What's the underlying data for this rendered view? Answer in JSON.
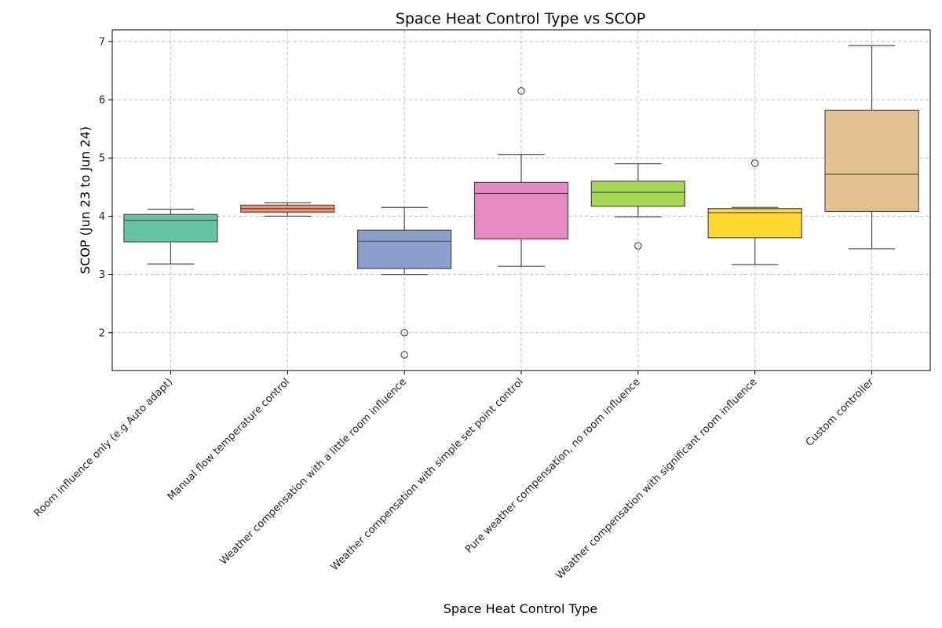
{
  "chart_data": {
    "type": "box",
    "title": "Space Heat Control Type vs SCOP",
    "xlabel": "Space Heat Control Type",
    "ylabel": "SCOP (Jun 23 to Jun 24)",
    "ylim": [
      1.35,
      7.2
    ],
    "yticks": [
      2,
      3,
      4,
      5,
      6,
      7
    ],
    "grid": true,
    "categories": [
      "Room influence only (e.g Auto adapt)",
      "Manual flow temperature control",
      "Weather compensation with a little room influence",
      "Weather compensation with simple set point control",
      "Pure weather compensation, no room influence",
      "Weather compensation with significant room influence",
      "Custom controller"
    ],
    "colors": [
      "#66c2a5",
      "#fc8d62",
      "#8da0cb",
      "#e78ac3",
      "#a6d854",
      "#ffd92f",
      "#e5c494"
    ],
    "boxes": [
      {
        "whisker_low": 3.18,
        "q1": 3.56,
        "median": 3.93,
        "q3": 4.03,
        "whisker_high": 4.12,
        "outliers": []
      },
      {
        "whisker_low": 4.0,
        "q1": 4.07,
        "median": 4.13,
        "q3": 4.19,
        "whisker_high": 4.23,
        "outliers": []
      },
      {
        "whisker_low": 3.0,
        "q1": 3.1,
        "median": 3.57,
        "q3": 3.76,
        "whisker_high": 4.15,
        "outliers": [
          2.0,
          1.62
        ]
      },
      {
        "whisker_low": 3.14,
        "q1": 3.61,
        "median": 4.39,
        "q3": 4.58,
        "whisker_high": 5.06,
        "outliers": [
          6.15
        ]
      },
      {
        "whisker_low": 3.99,
        "q1": 4.17,
        "median": 4.41,
        "q3": 4.6,
        "whisker_high": 4.9,
        "outliers": [
          3.49
        ]
      },
      {
        "whisker_low": 3.17,
        "q1": 3.63,
        "median": 4.06,
        "q3": 4.13,
        "whisker_high": 4.15,
        "outliers": [
          4.91
        ]
      },
      {
        "whisker_low": 3.44,
        "q1": 4.08,
        "median": 4.72,
        "q3": 5.82,
        "whisker_high": 6.93,
        "outliers": []
      }
    ]
  }
}
